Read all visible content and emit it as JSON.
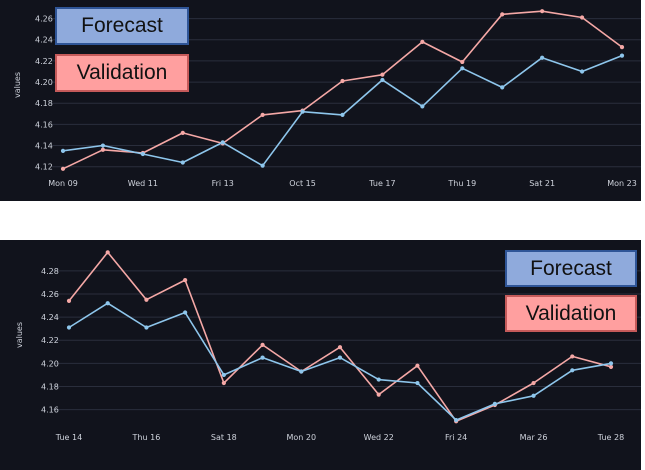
{
  "colors": {
    "background": "#11131c",
    "forecast_line": "#8ec6ec",
    "validation_line": "#f5a8a6",
    "forecast_legend": "#8faadc",
    "validation_legend": "#ff9f9f",
    "legend_border": "#2f5597",
    "legend_border_validation": "#c55a5a"
  },
  "chart_data": [
    {
      "type": "line",
      "ylabel": "values",
      "ylim": [
        4.115,
        4.27
      ],
      "yticks": [
        4.12,
        4.14,
        4.16,
        4.18,
        4.2,
        4.22,
        4.24,
        4.26
      ],
      "ytick_labels": [
        "4.12",
        "4.14",
        "4.16",
        "4.18",
        "4.20",
        "4.22",
        "4.24",
        "4.26"
      ],
      "xtick_labels": [
        "Mon 09",
        "Wed 11",
        "Fri 13",
        "Oct 15",
        "Tue 17",
        "Thu 19",
        "Sat 21",
        "Mon 23"
      ],
      "legend": {
        "placement": "top-left",
        "entries": [
          "Forecast",
          "Validation"
        ]
      },
      "series": [
        {
          "name": "Forecast",
          "values": [
            4.135,
            4.14,
            4.132,
            4.124,
            4.143,
            4.121,
            4.172,
            4.169,
            4.202,
            4.177,
            4.213,
            4.195,
            4.223,
            4.21,
            4.225
          ]
        },
        {
          "name": "Validation",
          "values": [
            4.118,
            4.136,
            4.133,
            4.152,
            4.142,
            4.169,
            4.173,
            4.201,
            4.207,
            4.238,
            4.219,
            4.264,
            4.267,
            4.261,
            4.233
          ]
        }
      ]
    },
    {
      "type": "line",
      "ylabel": "values",
      "ylim": [
        4.145,
        4.298
      ],
      "yticks": [
        4.16,
        4.18,
        4.2,
        4.22,
        4.24,
        4.26,
        4.28
      ],
      "ytick_labels": [
        "4.16",
        "4.18",
        "4.20",
        "4.22",
        "4.24",
        "4.26",
        "4.28"
      ],
      "xtick_labels": [
        "Tue 14",
        "Thu 16",
        "Sat 18",
        "Mon 20",
        "Wed 22",
        "Fri 24",
        "Mar 26",
        "Tue 28"
      ],
      "legend": {
        "placement": "top-right",
        "entries": [
          "Forecast",
          "Validation"
        ]
      },
      "series": [
        {
          "name": "Forecast",
          "values": [
            4.231,
            4.252,
            4.231,
            4.244,
            4.19,
            4.205,
            4.193,
            4.205,
            4.186,
            4.183,
            4.151,
            4.165,
            4.172,
            4.194,
            4.2
          ]
        },
        {
          "name": "Validation",
          "values": [
            4.254,
            4.296,
            4.255,
            4.272,
            4.183,
            4.216,
            4.193,
            4.214,
            4.173,
            4.198,
            4.15,
            4.164,
            4.183,
            4.206,
            4.197
          ]
        }
      ]
    }
  ]
}
